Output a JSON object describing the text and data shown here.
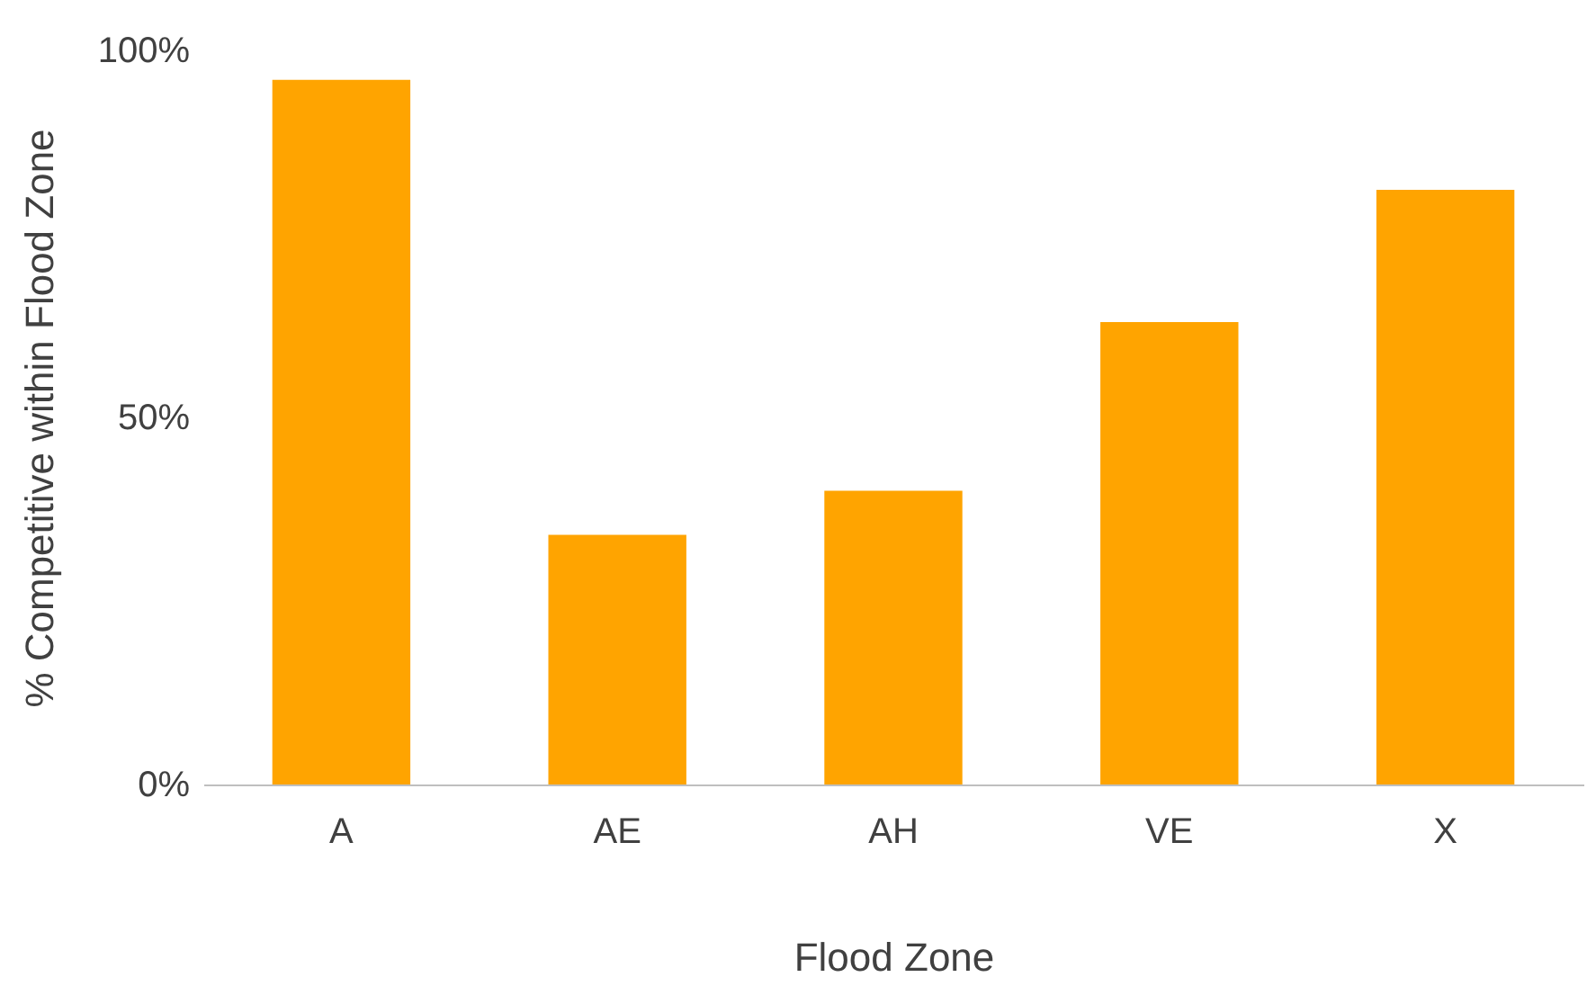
{
  "chart_data": {
    "type": "bar",
    "xlabel": "Flood Zone",
    "ylabel": "% Competitive within Flood Zone",
    "categories": [
      "A",
      "AE",
      "AH",
      "VE",
      "X"
    ],
    "values": [
      96,
      34,
      40,
      63,
      81
    ],
    "color": "#ffa400",
    "ylim": [
      0,
      100
    ],
    "yticks": [
      {
        "value": 0,
        "label": "0%"
      },
      {
        "value": 50,
        "label": "50%"
      },
      {
        "value": 100,
        "label": "100%"
      }
    ],
    "grid": false
  }
}
